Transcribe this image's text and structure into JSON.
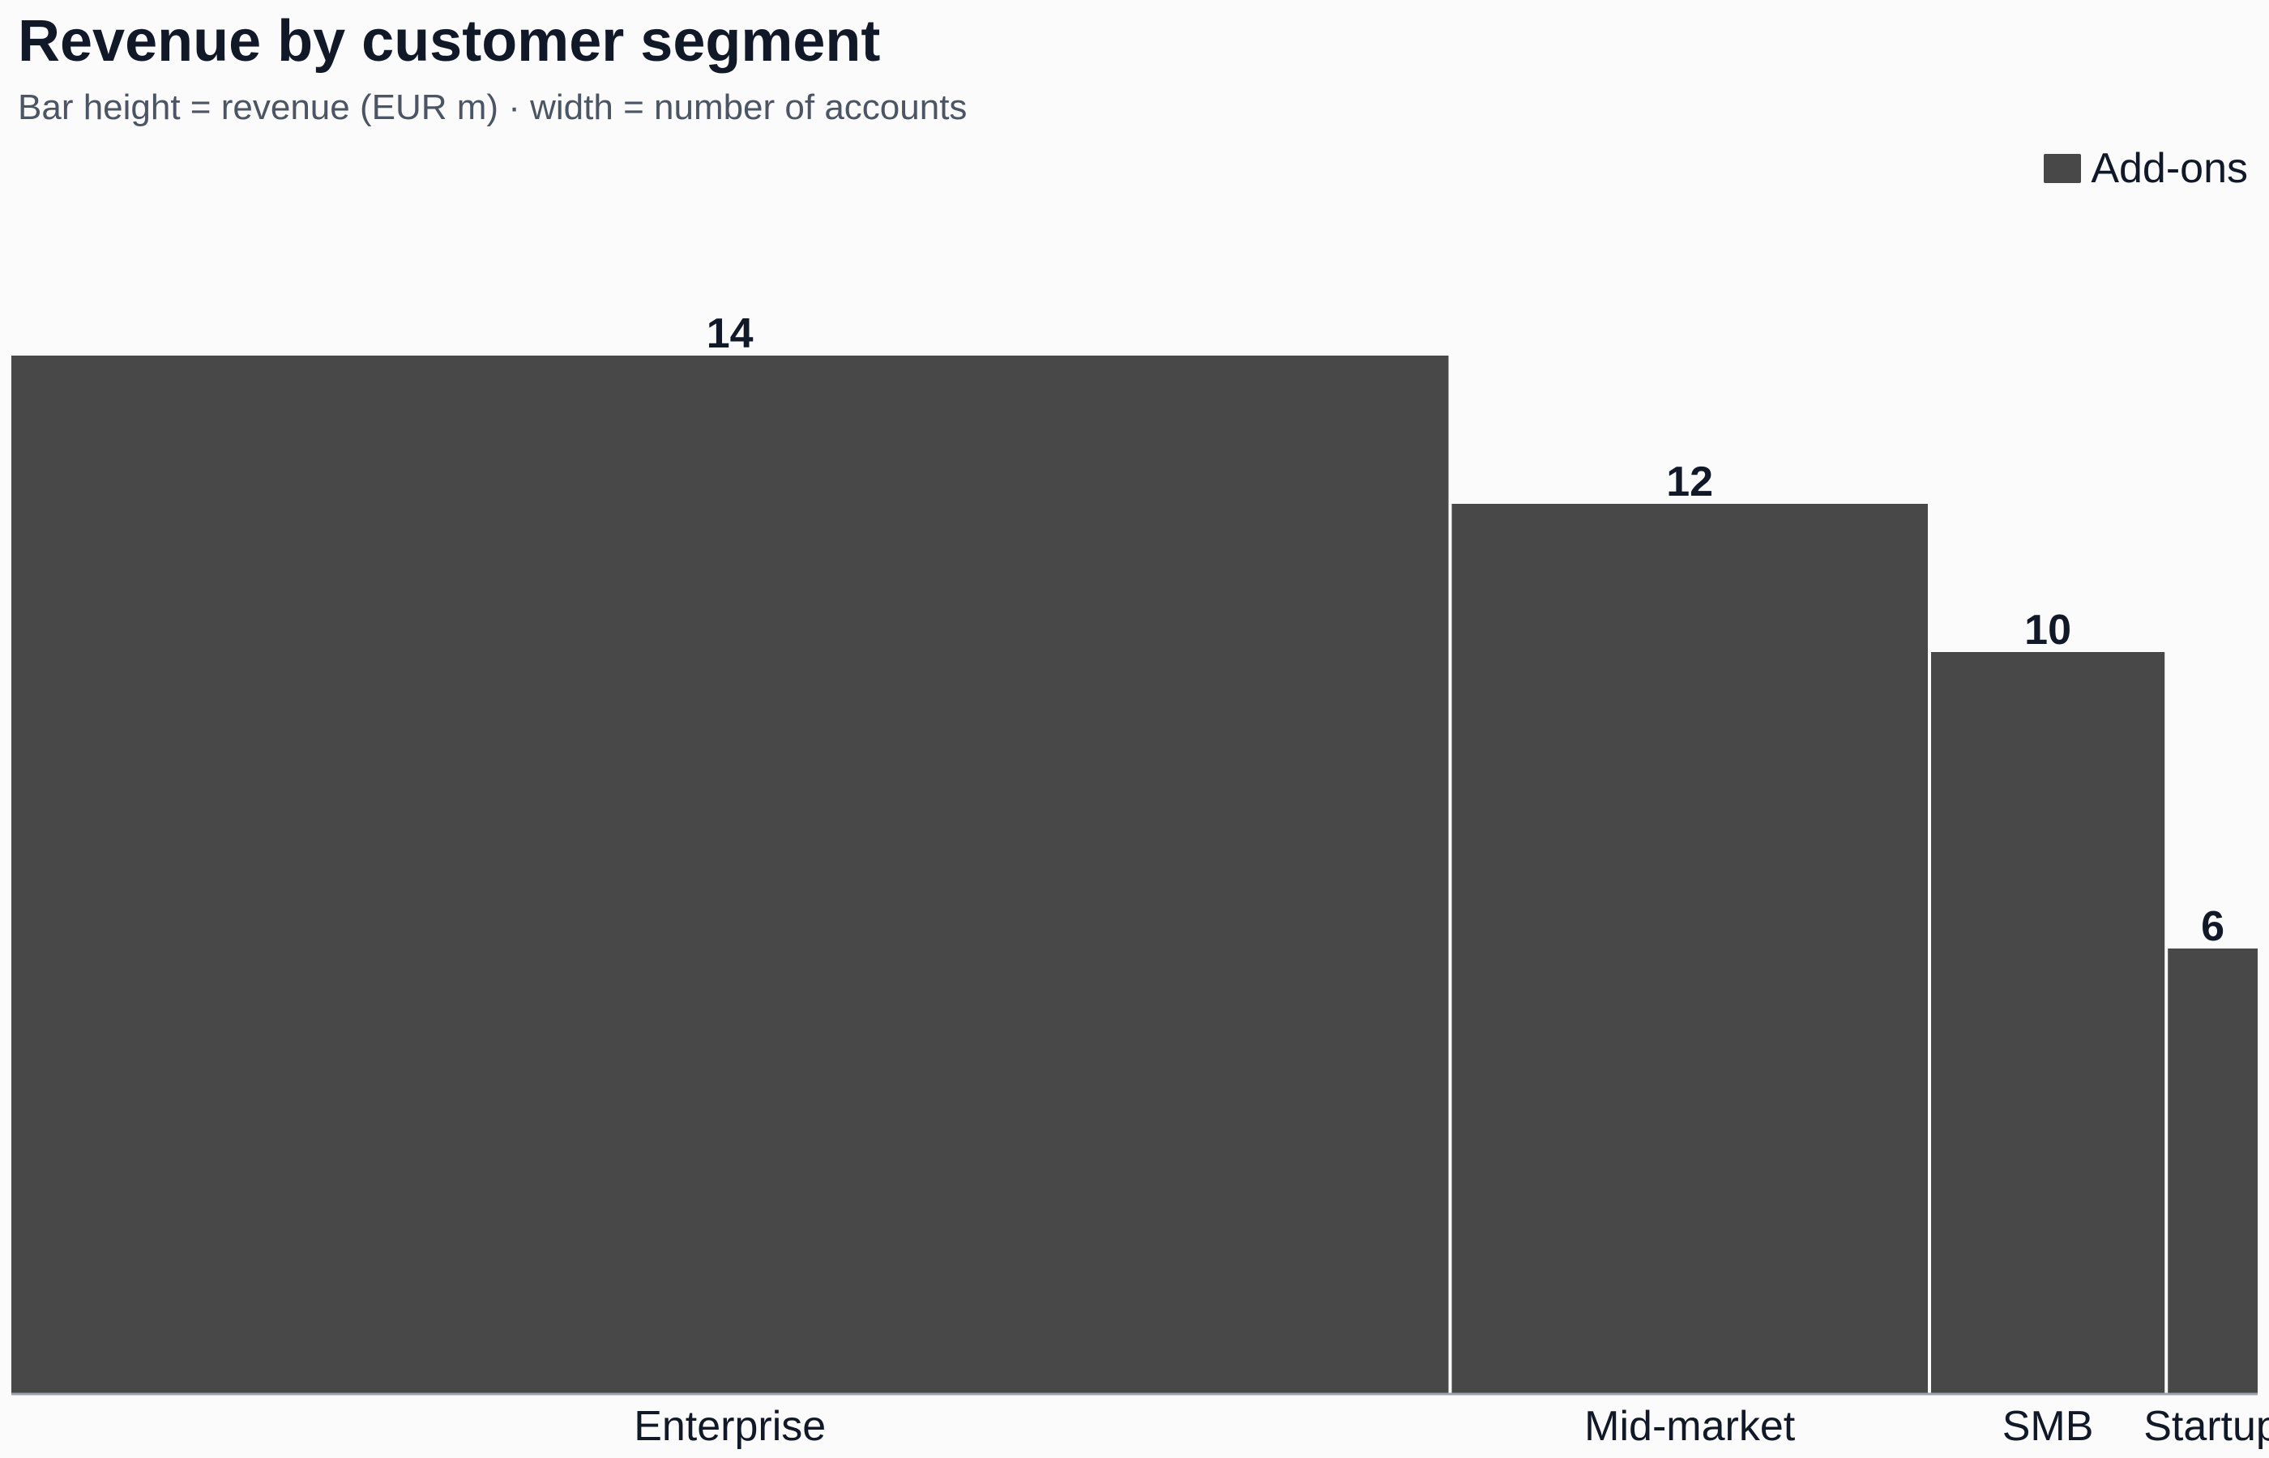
{
  "header": {
    "title": "Revenue by customer segment",
    "subtitle": "Bar height = revenue (EUR m) · width = number of accounts"
  },
  "legend": {
    "label": "Add-ons",
    "color": "#484848"
  },
  "colors": {
    "bar": "#484848",
    "bar_gap": "#ffffff",
    "baseline": "#9ca3af",
    "value_label": "#111827",
    "category_label": "#111827"
  },
  "chart_data": {
    "type": "bar",
    "variant": "variable-width",
    "title": "Revenue by customer segment",
    "subtitle": "Bar height = revenue (EUR m) · width = number of accounts",
    "categories": [
      "Enterprise",
      "Mid-market",
      "SMB",
      "Startup"
    ],
    "series": [
      {
        "name": "Add-ons",
        "values": [
          14,
          12,
          10,
          6
        ]
      }
    ],
    "widths_relative": [
      32,
      10.6,
      5.2,
      2
    ],
    "ylim": [
      0,
      16
    ],
    "grid": false,
    "legend_position": "top-right",
    "value_labels": [
      "14",
      "12",
      "10",
      "6"
    ]
  }
}
